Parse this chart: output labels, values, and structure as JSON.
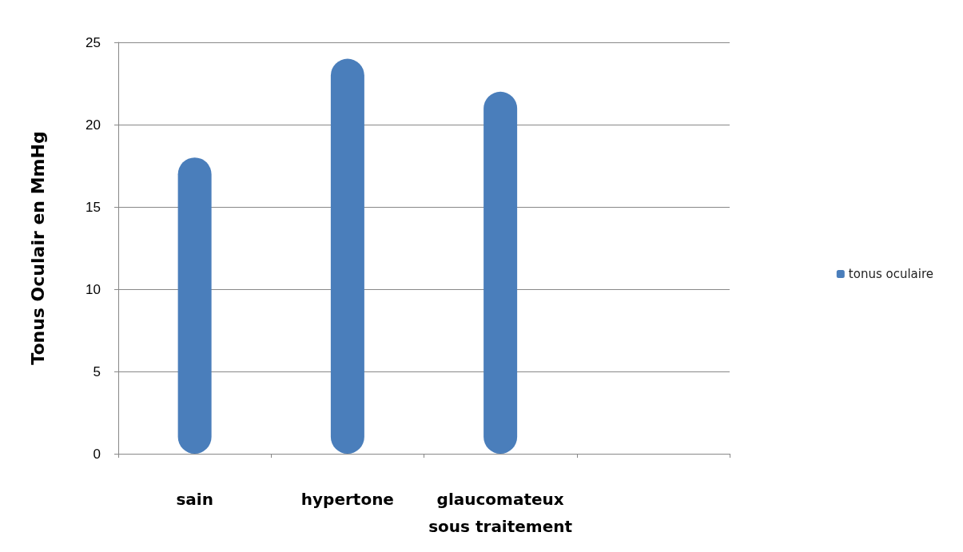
{
  "chart_data": {
    "type": "bar",
    "ylabel": "Tonus Oculair en MmHg",
    "categories": [
      "sain",
      "hypertone",
      "glaucomateux\nsous traitement",
      null
    ],
    "series": [
      {
        "name": "tonus oculaire",
        "color": "#4a7ebb",
        "values": [
          18,
          24,
          22,
          null
        ]
      }
    ],
    "ylim": [
      0,
      25
    ],
    "yticks": [
      0,
      5,
      10,
      15,
      20,
      25
    ],
    "grid": "y",
    "legend": "right"
  }
}
